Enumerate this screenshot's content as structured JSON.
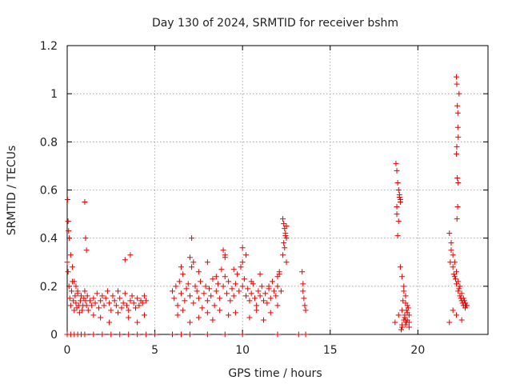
{
  "chart_data": {
    "type": "scatter",
    "title": "Day 130 of 2024, SRMTID for receiver bshm",
    "xlabel": "GPS time / hours",
    "ylabel": "SRMTID / TECUs",
    "xlim": [
      0,
      24
    ],
    "ylim": [
      0,
      1.2
    ],
    "xticks": [
      0,
      5,
      10,
      15,
      20
    ],
    "xtick_labels": [
      "0",
      "5",
      "10",
      "15",
      "20"
    ],
    "yticks": [
      0,
      0.2,
      0.4,
      0.6,
      0.8,
      1.0,
      1.2
    ],
    "ytick_labels": [
      "0",
      "0.2",
      "0.4",
      "0.6",
      "0.8",
      "1",
      "1.2"
    ],
    "grid": true,
    "marker": "+",
    "color": "#e60000",
    "series": [
      {
        "name": "SRMTID",
        "x": [
          0.0,
          0.05,
          0.1,
          0.15,
          0.2,
          0.25,
          0.3,
          0.35,
          0.4,
          0.45,
          0.5,
          0.55,
          0.6,
          0.65,
          0.7,
          0.75,
          0.8,
          0.85,
          0.9,
          0.95,
          1.0,
          1.05,
          1.1,
          1.15,
          1.2,
          1.3,
          1.4,
          1.5,
          1.6,
          1.7,
          1.8,
          1.9,
          2.0,
          2.1,
          2.2,
          2.3,
          2.4,
          2.5,
          2.6,
          2.7,
          2.8,
          2.9,
          3.0,
          3.1,
          3.2,
          3.3,
          3.4,
          3.5,
          3.6,
          3.7,
          3.8,
          3.9,
          4.0,
          4.1,
          4.2,
          4.3,
          4.4,
          4.5,
          0.02,
          0.05,
          0.08,
          0.12,
          0.2,
          0.3,
          0.4,
          0.5,
          0.6,
          1.0,
          1.05,
          1.1,
          1.5,
          1.9,
          2.4,
          2.9,
          3.3,
          3.5,
          3.6,
          4.0,
          4.4,
          0.0,
          0.2,
          0.4,
          0.6,
          0.8,
          1.0,
          1.5,
          2.0,
          2.5,
          3.0,
          3.5,
          4.0,
          4.5,
          5.0,
          6.0,
          6.5,
          7.0,
          8.0,
          9.0,
          10.0,
          12.0,
          13.2,
          13.6,
          6.0,
          6.1,
          6.2,
          6.3,
          6.4,
          6.5,
          6.6,
          6.7,
          6.8,
          6.9,
          7.0,
          7.1,
          7.2,
          7.3,
          7.4,
          7.5,
          7.6,
          7.7,
          7.8,
          7.9,
          8.0,
          8.1,
          8.2,
          8.3,
          8.4,
          8.5,
          8.6,
          8.7,
          8.8,
          8.9,
          9.0,
          9.1,
          9.2,
          9.3,
          9.4,
          9.5,
          9.6,
          9.7,
          9.8,
          9.9,
          10.0,
          10.1,
          10.2,
          10.3,
          10.4,
          10.5,
          10.6,
          10.7,
          10.8,
          10.9,
          11.0,
          11.1,
          11.2,
          11.3,
          11.4,
          11.5,
          11.6,
          11.7,
          11.8,
          11.9,
          12.0,
          12.1,
          12.2,
          6.3,
          6.6,
          7.0,
          7.1,
          7.2,
          7.5,
          8.0,
          8.3,
          8.7,
          8.9,
          9.0,
          9.2,
          9.6,
          10.0,
          10.2,
          10.4,
          10.8,
          11.2,
          11.6,
          12.0,
          12.1,
          6.5,
          7.0,
          7.5,
          8.0,
          8.5,
          9.0,
          9.5,
          10.0,
          10.5,
          11.0,
          11.5,
          12.0,
          12.3,
          12.35,
          12.4,
          12.45,
          12.5,
          12.35,
          12.4,
          12.3,
          12.45,
          12.5,
          12.5,
          13.4,
          13.45,
          13.5,
          13.55,
          13.6,
          13.45,
          18.75,
          18.8,
          18.85,
          18.9,
          18.95,
          19.0,
          18.8,
          18.9,
          18.85,
          18.95,
          19.0,
          18.8,
          19.0,
          19.1,
          19.2,
          19.3,
          19.4,
          19.5,
          19.1,
          19.2,
          19.3,
          19.4,
          19.15,
          19.25,
          19.35,
          19.45,
          19.2,
          19.3,
          19.1,
          19.4,
          19.25,
          19.35,
          19.05,
          19.5,
          18.7,
          18.9,
          19.1,
          19.3,
          19.5,
          21.8,
          21.9,
          22.0,
          22.1,
          22.2,
          22.3,
          22.4,
          22.5,
          22.6,
          22.7,
          22.8,
          21.9,
          22.0,
          22.1,
          22.2,
          22.3,
          22.4,
          22.5,
          22.6,
          22.7,
          21.85,
          22.05,
          22.15,
          22.35,
          22.45,
          22.55,
          22.65,
          22.75,
          22.2,
          22.22,
          22.25,
          22.28,
          22.3,
          22.22,
          22.2,
          22.25,
          22.3,
          22.27,
          22.23,
          22.28,
          22.35,
          21.8,
          22.0,
          22.2,
          22.5
        ],
        "y": [
          0.3,
          0.26,
          0.2,
          0.15,
          0.12,
          0.18,
          0.22,
          0.14,
          0.1,
          0.16,
          0.13,
          0.11,
          0.17,
          0.12,
          0.09,
          0.14,
          0.16,
          0.1,
          0.12,
          0.15,
          0.18,
          0.14,
          0.12,
          0.16,
          0.1,
          0.14,
          0.12,
          0.15,
          0.13,
          0.17,
          0.11,
          0.14,
          0.16,
          0.12,
          0.15,
          0.18,
          0.13,
          0.1,
          0.16,
          0.14,
          0.12,
          0.18,
          0.15,
          0.11,
          0.13,
          0.17,
          0.12,
          0.1,
          0.14,
          0.16,
          0.13,
          0.11,
          0.15,
          0.12,
          0.14,
          0.13,
          0.16,
          0.14,
          0.56,
          0.47,
          0.43,
          0.4,
          0.33,
          0.28,
          0.22,
          0.2,
          0.18,
          0.55,
          0.4,
          0.35,
          0.08,
          0.07,
          0.05,
          0.09,
          0.31,
          0.07,
          0.33,
          0.05,
          0.08,
          0,
          0,
          0,
          0,
          0,
          0,
          0,
          0,
          0,
          0,
          0,
          0,
          0,
          0,
          0,
          0,
          0,
          0,
          0,
          0,
          0,
          0,
          0,
          0.18,
          0.15,
          0.2,
          0.12,
          0.22,
          0.17,
          0.25,
          0.14,
          0.19,
          0.21,
          0.16,
          0.28,
          0.13,
          0.2,
          0.18,
          0.15,
          0.22,
          0.11,
          0.17,
          0.2,
          0.14,
          0.19,
          0.16,
          0.23,
          0.12,
          0.18,
          0.21,
          0.15,
          0.27,
          0.2,
          0.24,
          0.17,
          0.22,
          0.14,
          0.19,
          0.16,
          0.21,
          0.25,
          0.18,
          0.28,
          0.2,
          0.23,
          0.16,
          0.19,
          0.14,
          0.17,
          0.21,
          0.15,
          0.12,
          0.18,
          0.16,
          0.2,
          0.14,
          0.17,
          0.13,
          0.19,
          0.15,
          0.22,
          0.18,
          0.16,
          0.2,
          0.25,
          0.18,
          0.08,
          0.1,
          0.05,
          0.4,
          0.3,
          0.07,
          0.09,
          0.06,
          0.1,
          0.35,
          0.32,
          0.08,
          0.09,
          0.36,
          0.33,
          0.07,
          0.1,
          0.06,
          0.09,
          0.12,
          0.26,
          0.28,
          0.32,
          0.26,
          0.3,
          0.24,
          0.33,
          0.27,
          0.3,
          0.22,
          0.25,
          0.2,
          0.24,
          0.48,
          0.46,
          0.44,
          0.42,
          0.4,
          0.38,
          0.36,
          0.33,
          0.41,
          0.3,
          0.45,
          0.26,
          0.21,
          0.15,
          0.12,
          0.1,
          0.18,
          0.71,
          0.68,
          0.63,
          0.6,
          0.57,
          0.55,
          0.5,
          0.47,
          0.41,
          0.58,
          0.56,
          0.53,
          0.28,
          0.24,
          0.2,
          0.16,
          0.12,
          0.08,
          0.1,
          0.06,
          0.04,
          0.09,
          0.14,
          0.07,
          0.05,
          0.11,
          0.18,
          0.13,
          0.03,
          0.06,
          0.08,
          0.1,
          0.02,
          0.05,
          0.05,
          0.08,
          0.04,
          0.06,
          0.03,
          0.42,
          0.38,
          0.33,
          0.3,
          0.26,
          0.22,
          0.2,
          0.17,
          0.15,
          0.13,
          0.12,
          0.35,
          0.28,
          0.24,
          0.21,
          0.18,
          0.16,
          0.14,
          0.12,
          0.11,
          0.3,
          0.25,
          0.23,
          0.19,
          0.15,
          0.13,
          0.14,
          0.12,
          1.07,
          1.04,
          0.95,
          0.86,
          0.82,
          0.78,
          0.75,
          0.65,
          0.63,
          0.53,
          0.48,
          0.92,
          1.0,
          0.05,
          0.1,
          0.08,
          0.06
        ]
      }
    ]
  }
}
